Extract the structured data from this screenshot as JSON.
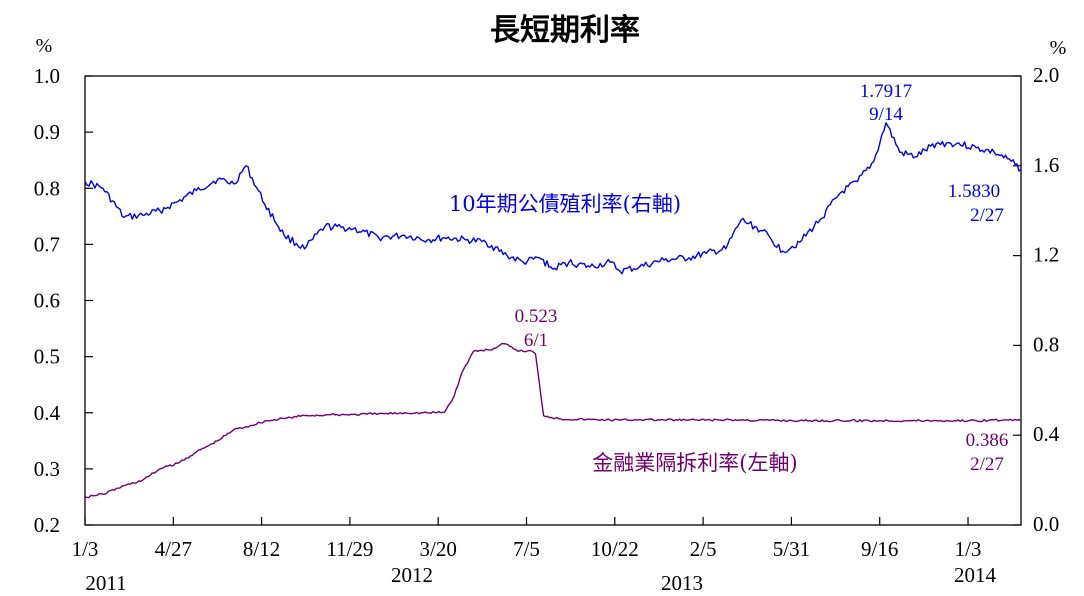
{
  "chart_data": {
    "type": "line",
    "title": "長短期利率",
    "left_axis": {
      "unit": "%",
      "ylim": [
        0.2,
        1.0
      ],
      "ticks": [
        "1.0",
        "0.9",
        "0.8",
        "0.7",
        "0.6",
        "0.5",
        "0.4",
        "0.3",
        "0.2"
      ]
    },
    "right_axis": {
      "unit": "%",
      "ylim": [
        0.0,
        2.0
      ],
      "ticks": [
        "2.0",
        "1.6",
        "1.2",
        "0.8",
        "0.4",
        "0.0"
      ]
    },
    "x_tick_labels": [
      "1/3",
      "4/27",
      "8/12",
      "11/29",
      "3/20",
      "7/5",
      "10/22",
      "2/5",
      "5/31",
      "9/16",
      "1/3"
    ],
    "year_labels": [
      "2011",
      "2012",
      "2013",
      "2014"
    ],
    "grid": false,
    "legend": "none",
    "series": [
      {
        "name": "10年期公債殖利率(右軸)",
        "axis": "right",
        "color": "#0000e6",
        "x": [
          "2011-01-03",
          "2011-01-25",
          "2011-02-20",
          "2011-03-15",
          "2011-04-05",
          "2011-04-27",
          "2011-05-20",
          "2011-06-15",
          "2011-07-05",
          "2011-07-20",
          "2011-08-12",
          "2011-09-05",
          "2011-09-30",
          "2011-10-25",
          "2011-11-29",
          "2011-12-30",
          "2012-01-31",
          "2012-02-28",
          "2012-03-20",
          "2012-04-15",
          "2012-05-10",
          "2012-06-05",
          "2012-06-25",
          "2012-07-15",
          "2012-07-31",
          "2012-08-20",
          "2012-09-15",
          "2012-10-10",
          "2012-10-22",
          "2012-11-15",
          "2012-12-15",
          "2013-01-15",
          "2013-02-05",
          "2013-03-01",
          "2013-03-20",
          "2013-04-15",
          "2013-05-10",
          "2013-05-31",
          "2013-06-25",
          "2013-07-20",
          "2013-08-10",
          "2013-08-30",
          "2013-09-14",
          "2013-10-01",
          "2013-10-20",
          "2013-11-15",
          "2013-12-10",
          "2014-01-03",
          "2014-01-25",
          "2014-02-15",
          "2014-02-27"
        ],
        "y": [
          1.53,
          1.5,
          1.37,
          1.38,
          1.4,
          1.44,
          1.49,
          1.54,
          1.52,
          1.6,
          1.43,
          1.29,
          1.23,
          1.33,
          1.32,
          1.28,
          1.29,
          1.27,
          1.28,
          1.27,
          1.26,
          1.2,
          1.17,
          1.19,
          1.14,
          1.17,
          1.15,
          1.17,
          1.13,
          1.15,
          1.18,
          1.19,
          1.21,
          1.23,
          1.36,
          1.31,
          1.22,
          1.26,
          1.36,
          1.48,
          1.53,
          1.62,
          1.7917,
          1.66,
          1.64,
          1.7,
          1.7,
          1.68,
          1.66,
          1.62,
          1.583
        ]
      },
      {
        "name": "金融業隔拆利率(左軸)",
        "axis": "left",
        "color": "#700070",
        "x": [
          "2011-01-03",
          "2011-01-25",
          "2011-02-20",
          "2011-03-15",
          "2011-04-05",
          "2011-04-27",
          "2011-05-20",
          "2011-06-15",
          "2011-07-05",
          "2011-07-20",
          "2011-08-12",
          "2011-09-05",
          "2011-09-30",
          "2011-10-25",
          "2011-11-29",
          "2011-12-30",
          "2012-01-31",
          "2012-02-28",
          "2012-03-20",
          "2012-04-01",
          "2012-04-10",
          "2012-04-25",
          "2012-05-15",
          "2012-06-01",
          "2012-06-20",
          "2012-07-05",
          "2012-07-10",
          "2012-07-20",
          "2012-08-10",
          "2012-09-15",
          "2012-10-22",
          "2012-11-15",
          "2012-12-15",
          "2013-01-15",
          "2013-02-05",
          "2013-03-20",
          "2013-05-31",
          "2013-07-20",
          "2013-09-16",
          "2013-11-15",
          "2014-01-03",
          "2014-01-20",
          "2014-02-27"
        ],
        "y": [
          0.25,
          0.255,
          0.27,
          0.28,
          0.3,
          0.31,
          0.33,
          0.35,
          0.37,
          0.375,
          0.385,
          0.39,
          0.395,
          0.396,
          0.397,
          0.398,
          0.4,
          0.4,
          0.401,
          0.43,
          0.47,
          0.51,
          0.512,
          0.523,
          0.51,
          0.51,
          0.505,
          0.395,
          0.389,
          0.388,
          0.387,
          0.388,
          0.387,
          0.387,
          0.387,
          0.387,
          0.386,
          0.386,
          0.386,
          0.386,
          0.386,
          0.387,
          0.386
        ]
      }
    ],
    "annotations": [
      {
        "value": "1.7917",
        "date": "9/14",
        "series": 0
      },
      {
        "value": "1.5830",
        "date": "2/27",
        "series": 0
      },
      {
        "value": "0.523",
        "date": "6/1",
        "series": 1
      },
      {
        "value": "0.386",
        "date": "2/27",
        "series": 1
      }
    ]
  }
}
